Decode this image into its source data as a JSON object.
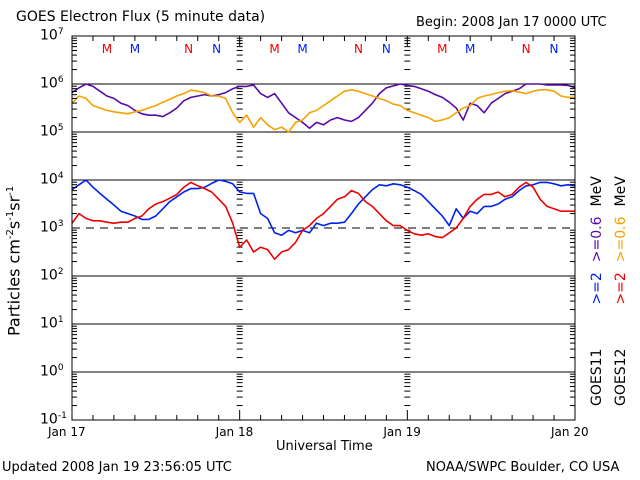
{
  "header": {
    "title": "GOES Electron Flux (5 minute data)",
    "begin": "Begin: 2008 Jan 17 0000 UTC"
  },
  "footer": {
    "updated": "Updated 2008 Jan 19 23:56:05 UTC",
    "credit": "NOAA/SWPC Boulder, CO USA"
  },
  "legend": {
    "goes11_label": "GOES11",
    "goes12_label": "GOES12",
    "g11_2mev": ">=2",
    "g11_06mev": ">=0.6",
    "g12_2mev": ">=2",
    "g12_06mev": ">=0.6",
    "unit1": "MeV",
    "unit2": "MeV"
  },
  "colors": {
    "goes11_2mev": "#0022ee",
    "goes12_2mev": "#ee0000",
    "goes11_06mev": "#5a0aa8",
    "goes12_06mev": "#f4a300",
    "marker_goes12": "#ee0000",
    "marker_goes11": "#0022ee"
  },
  "chart_data": {
    "type": "line",
    "title": "GOES Electron Flux (5 minute data)",
    "xlabel": "Universal Time",
    "ylabel": "Particles cm-2s-1sr-1",
    "ylabel_parts": {
      "base": "Particles cm",
      "e1": "-2",
      "s": "s",
      "e2": "-1",
      "sr": "sr",
      "e3": "-1"
    },
    "xlim_hours": [
      0,
      72
    ],
    "ylim_log10": [
      -1,
      7
    ],
    "yscale": "log",
    "x_tick_labels": [
      "Jan 17",
      "Jan 18",
      "Jan 19",
      "Jan 20"
    ],
    "x_tick_hours": [
      0,
      24,
      48,
      72
    ],
    "y_tick_labels": [
      {
        "base": "10",
        "exp": "7",
        "log": 7
      },
      {
        "base": "10",
        "exp": "6",
        "log": 6
      },
      {
        "base": "10",
        "exp": "5",
        "log": 5
      },
      {
        "base": "10",
        "exp": "4",
        "log": 4
      },
      {
        "base": "10",
        "exp": "3",
        "log": 3
      },
      {
        "base": "10",
        "exp": "2",
        "log": 2
      },
      {
        "base": "10",
        "exp": "1",
        "log": 1
      },
      {
        "base": "10",
        "exp": "0",
        "log": 0
      },
      {
        "base": "10",
        "exp": "-1",
        "log": -1
      }
    ],
    "threshold_log10": 3,
    "markers": [
      {
        "label": "M",
        "hour": 5.0,
        "sat": "goes12"
      },
      {
        "label": "M",
        "hour": 9.0,
        "sat": "goes11"
      },
      {
        "label": "N",
        "hour": 16.7,
        "sat": "goes12"
      },
      {
        "label": "N",
        "hour": 20.7,
        "sat": "goes11"
      },
      {
        "label": "M",
        "hour": 29.0,
        "sat": "goes12"
      },
      {
        "label": "M",
        "hour": 33.0,
        "sat": "goes11"
      },
      {
        "label": "N",
        "hour": 41.0,
        "sat": "goes12"
      },
      {
        "label": "N",
        "hour": 45.0,
        "sat": "goes11"
      },
      {
        "label": "M",
        "hour": 53.0,
        "sat": "goes12"
      },
      {
        "label": "M",
        "hour": 57.0,
        "sat": "goes11"
      },
      {
        "label": "N",
        "hour": 65.0,
        "sat": "goes12"
      },
      {
        "label": "N",
        "hour": 69.0,
        "sat": "goes11"
      }
    ],
    "series": [
      {
        "name": "GOES11 >=0.6 MeV",
        "color_key": "goes11_06mev",
        "hours": [
          0,
          1,
          2,
          3,
          4,
          5,
          6,
          7,
          8,
          9,
          10,
          11,
          12,
          13,
          14,
          15,
          16,
          17,
          18,
          19,
          20,
          21,
          22,
          23,
          24,
          25,
          26,
          27,
          28,
          29,
          30,
          31,
          32,
          33,
          34,
          35,
          36,
          37,
          38,
          39,
          40,
          41,
          42,
          43,
          44,
          45,
          46,
          47,
          48,
          49,
          50,
          51,
          52,
          53,
          54,
          55,
          56,
          57,
          58,
          59,
          60,
          61,
          62,
          63,
          64,
          65,
          66,
          67,
          68,
          69,
          70,
          71,
          72
        ],
        "log10": [
          5.82,
          5.92,
          6.0,
          5.95,
          5.85,
          5.75,
          5.7,
          5.6,
          5.55,
          5.45,
          5.38,
          5.35,
          5.35,
          5.32,
          5.4,
          5.5,
          5.65,
          5.72,
          5.75,
          5.78,
          5.75,
          5.78,
          5.82,
          5.9,
          5.95,
          5.95,
          5.98,
          5.8,
          5.72,
          5.8,
          5.6,
          5.4,
          5.3,
          5.2,
          5.08,
          5.2,
          5.15,
          5.25,
          5.3,
          5.25,
          5.22,
          5.3,
          5.45,
          5.6,
          5.8,
          5.92,
          5.96,
          6.0,
          5.97,
          5.95,
          5.9,
          5.85,
          5.78,
          5.72,
          5.62,
          5.5,
          5.25,
          5.6,
          5.55,
          5.4,
          5.6,
          5.7,
          5.8,
          5.85,
          5.9,
          6.0,
          6.0,
          6.0,
          5.98,
          5.98,
          5.98,
          5.97,
          5.92
        ]
      },
      {
        "name": "GOES12 >=0.6 MeV",
        "color_key": "goes12_06mev",
        "hours": [
          0,
          1,
          2,
          3,
          4,
          5,
          6,
          7,
          8,
          9,
          10,
          11,
          12,
          13,
          14,
          15,
          16,
          17,
          18,
          19,
          20,
          21,
          22,
          23,
          24,
          25,
          26,
          27,
          28,
          29,
          30,
          31,
          32,
          33,
          34,
          35,
          36,
          37,
          38,
          39,
          40,
          41,
          42,
          43,
          44,
          45,
          46,
          47,
          48,
          49,
          50,
          51,
          52,
          53,
          54,
          55,
          56,
          57,
          58,
          59,
          60,
          61,
          62,
          63,
          64,
          65,
          66,
          67,
          68,
          69,
          70,
          71,
          72
        ],
        "log10": [
          5.6,
          5.75,
          5.7,
          5.55,
          5.5,
          5.45,
          5.42,
          5.4,
          5.38,
          5.42,
          5.45,
          5.5,
          5.55,
          5.62,
          5.68,
          5.75,
          5.8,
          5.87,
          5.85,
          5.82,
          5.75,
          5.75,
          5.7,
          5.4,
          5.2,
          5.35,
          5.1,
          5.3,
          5.15,
          5.05,
          5.1,
          5.0,
          5.2,
          5.25,
          5.4,
          5.45,
          5.55,
          5.65,
          5.75,
          5.85,
          5.88,
          5.85,
          5.8,
          5.75,
          5.7,
          5.65,
          5.58,
          5.55,
          5.45,
          5.4,
          5.35,
          5.3,
          5.22,
          5.25,
          5.3,
          5.4,
          5.5,
          5.55,
          5.7,
          5.75,
          5.78,
          5.82,
          5.85,
          5.86,
          5.83,
          5.8,
          5.85,
          5.88,
          5.88,
          5.85,
          5.75,
          5.72,
          5.72
        ]
      },
      {
        "name": "GOES11 >=2 MeV",
        "color_key": "goes11_2mev",
        "hours": [
          0,
          1,
          2,
          3,
          4,
          5,
          6,
          7,
          8,
          9,
          10,
          11,
          12,
          13,
          14,
          15,
          16,
          17,
          18,
          19,
          20,
          21,
          22,
          23,
          24,
          25,
          26,
          27,
          28,
          29,
          30,
          31,
          32,
          33,
          34,
          35,
          36,
          37,
          38,
          39,
          40,
          41,
          42,
          43,
          44,
          45,
          46,
          47,
          48,
          49,
          50,
          51,
          52,
          53,
          54,
          55,
          56,
          57,
          58,
          59,
          60,
          61,
          62,
          63,
          64,
          65,
          66,
          67,
          68,
          69,
          70,
          71,
          72
        ],
        "log10": [
          3.8,
          3.9,
          4.0,
          3.85,
          3.72,
          3.6,
          3.48,
          3.35,
          3.3,
          3.25,
          3.18,
          3.18,
          3.25,
          3.4,
          3.55,
          3.65,
          3.75,
          3.82,
          3.82,
          3.85,
          3.93,
          4.0,
          3.97,
          3.92,
          3.75,
          3.72,
          3.72,
          3.3,
          3.2,
          2.9,
          2.85,
          2.95,
          2.9,
          2.95,
          2.9,
          3.1,
          3.05,
          3.1,
          3.1,
          3.12,
          3.3,
          3.5,
          3.65,
          3.8,
          3.9,
          3.88,
          3.92,
          3.9,
          3.85,
          3.78,
          3.7,
          3.55,
          3.4,
          3.25,
          3.05,
          3.4,
          3.2,
          3.35,
          3.3,
          3.45,
          3.45,
          3.5,
          3.6,
          3.65,
          3.78,
          3.88,
          3.9,
          3.95,
          3.95,
          3.92,
          3.88,
          3.9,
          3.88
        ]
      },
      {
        "name": "GOES12 >=2 MeV",
        "color_key": "goes12_2mev",
        "hours": [
          0,
          1,
          2,
          3,
          4,
          5,
          6,
          7,
          8,
          9,
          10,
          11,
          12,
          13,
          14,
          15,
          16,
          17,
          18,
          19,
          20,
          21,
          22,
          23,
          24,
          25,
          26,
          27,
          28,
          29,
          30,
          31,
          32,
          33,
          34,
          35,
          36,
          37,
          38,
          39,
          40,
          41,
          42,
          43,
          44,
          45,
          46,
          47,
          48,
          49,
          50,
          51,
          52,
          53,
          54,
          55,
          56,
          57,
          58,
          59,
          60,
          61,
          62,
          63,
          64,
          65,
          66,
          67,
          68,
          69,
          70,
          71,
          72
        ],
        "log10": [
          3.1,
          3.3,
          3.2,
          3.15,
          3.15,
          3.12,
          3.1,
          3.12,
          3.12,
          3.2,
          3.25,
          3.4,
          3.5,
          3.55,
          3.62,
          3.7,
          3.85,
          3.95,
          3.88,
          3.82,
          3.75,
          3.6,
          3.45,
          3.1,
          2.6,
          2.75,
          2.5,
          2.6,
          2.55,
          2.35,
          2.5,
          2.55,
          2.7,
          2.95,
          3.05,
          3.2,
          3.3,
          3.45,
          3.6,
          3.65,
          3.78,
          3.72,
          3.55,
          3.45,
          3.3,
          3.15,
          3.05,
          3.05,
          2.95,
          2.88,
          2.85,
          2.88,
          2.82,
          2.8,
          2.9,
          3.0,
          3.2,
          3.45,
          3.6,
          3.7,
          3.7,
          3.75,
          3.65,
          3.7,
          3.85,
          3.95,
          3.85,
          3.6,
          3.45,
          3.4,
          3.35,
          3.35,
          3.35
        ]
      }
    ]
  }
}
